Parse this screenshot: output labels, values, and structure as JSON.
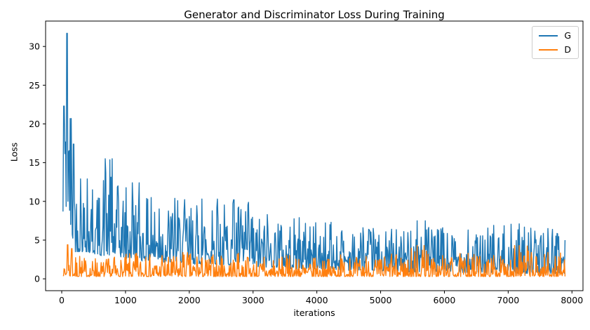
{
  "chart_data": {
    "type": "line",
    "title": "Generator and Discriminator Loss During Training",
    "xlabel": "iterations",
    "ylabel": "Loss",
    "xlim": [
      -253,
      8173
    ],
    "ylim": [
      -1.53,
      33.28
    ],
    "xticks": [
      0,
      1000,
      2000,
      3000,
      4000,
      5000,
      6000,
      7000,
      8000
    ],
    "yticks": [
      0,
      5,
      10,
      15,
      20,
      25,
      30
    ],
    "grid": false,
    "legend": {
      "position": "upper right",
      "entries": [
        {
          "label": "G",
          "color": "#1f77b4"
        },
        {
          "label": "D",
          "color": "#ff7f0e"
        }
      ]
    },
    "series": [
      {
        "name": "G",
        "color": "#1f77b4",
        "x_start": 20,
        "x_end": 7900,
        "peaks": [
          [
            45,
            22.3
          ],
          [
            88,
            31.7
          ],
          [
            150,
            20.7
          ],
          [
            190,
            17.4
          ],
          [
            400,
            12.9
          ],
          [
            790,
            15.5
          ],
          [
            1210,
            12.4
          ],
          [
            2440,
            10.3
          ],
          [
            2700,
            10.2
          ],
          [
            5700,
            7.5
          ],
          [
            7170,
            7.1
          ]
        ],
        "envelope_buckets": [
          [
            20,
            60,
            3.0,
            22.3
          ],
          [
            60,
            115,
            9.0,
            31.7
          ],
          [
            115,
            165,
            6.5,
            20.7
          ],
          [
            165,
            215,
            5.0,
            17.4
          ],
          [
            215,
            400,
            3.5,
            12.9
          ],
          [
            400,
            600,
            3.2,
            11.5
          ],
          [
            600,
            800,
            3.0,
            15.5
          ],
          [
            800,
            1000,
            2.8,
            12.0
          ],
          [
            1000,
            1250,
            2.5,
            12.4
          ],
          [
            1250,
            1600,
            2.3,
            10.5
          ],
          [
            1600,
            2000,
            2.1,
            10.4
          ],
          [
            2000,
            2450,
            1.9,
            10.3
          ],
          [
            2450,
            3000,
            1.8,
            10.2
          ],
          [
            3000,
            3500,
            1.5,
            8.3
          ],
          [
            3500,
            4000,
            1.3,
            7.9
          ],
          [
            4000,
            4500,
            1.2,
            7.3
          ],
          [
            4500,
            5000,
            1.1,
            6.6
          ],
          [
            5000,
            5400,
            1.0,
            6.4
          ],
          [
            5400,
            5800,
            0.9,
            7.5
          ],
          [
            5800,
            6200,
            0.9,
            6.6
          ],
          [
            6200,
            6600,
            0.8,
            6.3
          ],
          [
            6600,
            7000,
            0.8,
            6.9
          ],
          [
            7000,
            7400,
            0.7,
            7.1
          ],
          [
            7400,
            7900,
            0.7,
            6.5
          ]
        ]
      },
      {
        "name": "D",
        "color": "#ff7f0e",
        "x_start": 20,
        "x_end": 7900,
        "peaks": [
          [
            100,
            4.4
          ],
          [
            160,
            3.9
          ],
          [
            1900,
            3.4
          ],
          [
            5680,
            4.3
          ],
          [
            7100,
            4.3
          ],
          [
            7360,
            3.4
          ]
        ],
        "envelope_buckets": [
          [
            20,
            70,
            0.4,
            1.3
          ],
          [
            70,
            115,
            0.4,
            4.4
          ],
          [
            115,
            200,
            0.35,
            3.9
          ],
          [
            200,
            400,
            0.3,
            2.9
          ],
          [
            400,
            700,
            0.3,
            2.6
          ],
          [
            700,
            1000,
            0.3,
            2.8
          ],
          [
            1000,
            1400,
            0.3,
            3.3
          ],
          [
            1400,
            1800,
            0.3,
            3.0
          ],
          [
            1800,
            2200,
            0.3,
            3.4
          ],
          [
            2200,
            2600,
            0.3,
            3.1
          ],
          [
            2600,
            3000,
            0.3,
            3.3
          ],
          [
            3000,
            3400,
            0.3,
            2.8
          ],
          [
            3400,
            3800,
            0.3,
            3.0
          ],
          [
            3800,
            4200,
            0.3,
            2.7
          ],
          [
            4200,
            4600,
            0.3,
            3.1
          ],
          [
            4600,
            5000,
            0.3,
            2.9
          ],
          [
            5000,
            5400,
            0.3,
            3.2
          ],
          [
            5400,
            5800,
            0.3,
            4.3
          ],
          [
            5800,
            6200,
            0.3,
            3.0
          ],
          [
            6200,
            6600,
            0.3,
            3.3
          ],
          [
            6600,
            7000,
            0.3,
            3.0
          ],
          [
            7000,
            7400,
            0.3,
            4.3
          ],
          [
            7400,
            7900,
            0.3,
            3.4
          ]
        ]
      }
    ]
  }
}
